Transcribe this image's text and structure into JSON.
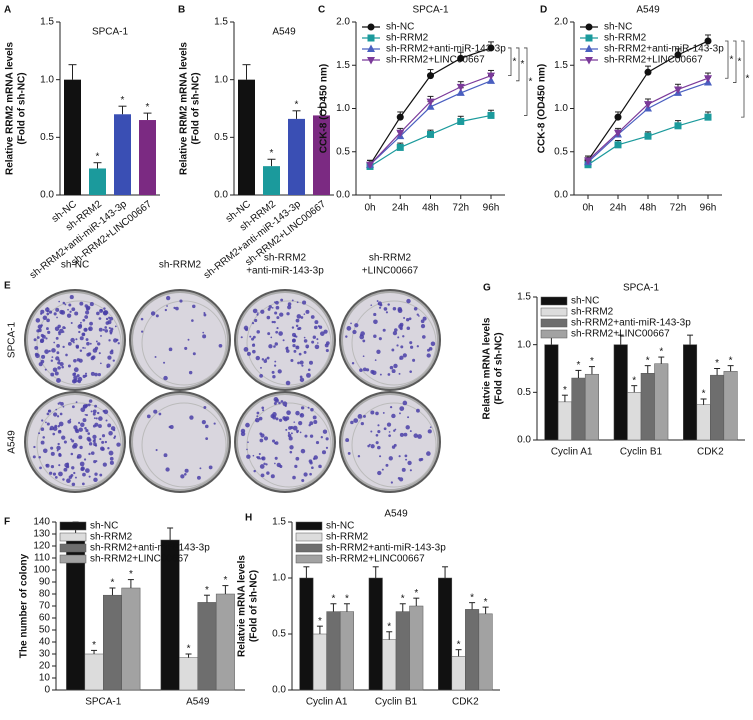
{
  "chart_data": [
    {
      "type": "bar",
      "panel": "A",
      "title": "SPCA-1",
      "ylabel": [
        "Relative RRM2 mRNA levels",
        "(Fold of sh-NC)"
      ],
      "categories": [
        "sh-NC",
        "sh-RRM2",
        "sh-RRM2+anti-miR-143-3p",
        "sh-RRM2+LINC00667"
      ],
      "values": [
        1.0,
        0.23,
        0.7,
        0.65
      ],
      "errors": [
        0.13,
        0.05,
        0.07,
        0.06
      ],
      "colors": [
        "#111111",
        "#1b9a9c",
        "#3a4fb4",
        "#7b2a82"
      ],
      "significance": [
        null,
        "*",
        "*",
        "*"
      ],
      "ylim": [
        0,
        1.5
      ],
      "yticks": [
        {
          "value": 0,
          "label": "0.0"
        },
        0.5,
        {
          "value": 1,
          "label": "1.0"
        },
        1.5
      ]
    },
    {
      "type": "bar",
      "panel": "B",
      "title": "A549",
      "ylabel": [
        "Relative RRM2 mRNA levels",
        "(Fold of sh-NC)"
      ],
      "categories": [
        "sh-NC",
        "sh-RRM2",
        "sh-RRM2+anti-miR-143-3p",
        "sh-RRM2+LINC00667"
      ],
      "values": [
        1.0,
        0.25,
        0.66,
        0.69
      ],
      "errors": [
        0.13,
        0.06,
        0.07,
        0.07
      ],
      "colors": [
        "#111111",
        "#1b9a9c",
        "#3a4fb4",
        "#7b2a82"
      ],
      "significance": [
        null,
        "*",
        "*",
        "*"
      ],
      "ylim": [
        0,
        1.5
      ],
      "yticks": [
        {
          "value": 0,
          "label": "0.0"
        },
        0.5,
        {
          "value": 1,
          "label": "1.0"
        },
        1.5
      ]
    },
    {
      "type": "line",
      "panel": "C",
      "title": "SPCA-1",
      "ylabel": [
        "CCK-8 (OD450 nm)"
      ],
      "categories": [
        "0h",
        "24h",
        "48h",
        "72h",
        "96h"
      ],
      "series": [
        {
          "name": "sh-NC",
          "color": "#111111",
          "marker": "circle",
          "values": [
            0.35,
            0.9,
            1.38,
            1.58,
            1.7
          ],
          "errors": [
            0.05,
            0.06,
            0.07,
            0.07,
            0.07
          ]
        },
        {
          "name": "sh-RRM2",
          "color": "#1b9a9c",
          "marker": "square",
          "values": [
            0.33,
            0.55,
            0.7,
            0.85,
            0.92
          ],
          "errors": [
            0.04,
            0.05,
            0.05,
            0.06,
            0.06
          ]
        },
        {
          "name": "sh-RRM2+anti-miR-143-3p",
          "color": "#4a5fc0",
          "marker": "triangle",
          "values": [
            0.35,
            0.68,
            1.02,
            1.18,
            1.32
          ],
          "errors": [
            0.05,
            0.05,
            0.06,
            0.06,
            0.06
          ]
        },
        {
          "name": "sh-RRM2+LINC00667",
          "color": "#7b3a9a",
          "marker": "triangle-down",
          "values": [
            0.35,
            0.72,
            1.08,
            1.25,
            1.38
          ],
          "errors": [
            0.05,
            0.05,
            0.06,
            0.06,
            0.06
          ]
        }
      ],
      "significance": [
        "*",
        "*",
        "*"
      ],
      "ylim": [
        0,
        2
      ],
      "yticks": [
        {
          "value": 0,
          "label": "0.0"
        },
        0.5,
        {
          "value": 1,
          "label": "1.0"
        },
        1.5,
        {
          "value": 2,
          "label": "2.0"
        }
      ]
    },
    {
      "type": "line",
      "panel": "D",
      "title": "A549",
      "ylabel": [
        "CCK-8 (OD450 nm)"
      ],
      "categories": [
        "0h",
        "24h",
        "48h",
        "72h",
        "96h"
      ],
      "series": [
        {
          "name": "sh-NC",
          "color": "#111111",
          "marker": "circle",
          "values": [
            0.4,
            0.9,
            1.42,
            1.62,
            1.78
          ],
          "errors": [
            0.05,
            0.06,
            0.07,
            0.07,
            0.07
          ]
        },
        {
          "name": "sh-RRM2",
          "color": "#1b9a9c",
          "marker": "square",
          "values": [
            0.35,
            0.58,
            0.68,
            0.8,
            0.9
          ],
          "errors": [
            0.04,
            0.05,
            0.05,
            0.06,
            0.06
          ]
        },
        {
          "name": "sh-RRM2+anti-miR-143-3p",
          "color": "#4a5fc0",
          "marker": "triangle",
          "values": [
            0.38,
            0.7,
            1.0,
            1.18,
            1.3
          ],
          "errors": [
            0.05,
            0.05,
            0.06,
            0.06,
            0.06
          ]
        },
        {
          "name": "sh-RRM2+LINC00667",
          "color": "#7b3a9a",
          "marker": "triangle-down",
          "values": [
            0.4,
            0.72,
            1.05,
            1.22,
            1.35
          ],
          "errors": [
            0.05,
            0.05,
            0.06,
            0.06,
            0.06
          ]
        }
      ],
      "significance": [
        "*",
        "*",
        "*"
      ],
      "ylim": [
        0,
        2
      ],
      "yticks": [
        {
          "value": 0,
          "label": "0.0"
        },
        0.5,
        {
          "value": 1,
          "label": "1.0"
        },
        1.5,
        {
          "value": 2,
          "label": "2.0"
        }
      ]
    },
    {
      "type": "bar",
      "panel": "G",
      "title": "SPCA-1",
      "ylabel": [
        "Relatvie mRNA levels",
        "(Fold of sh-NC)"
      ],
      "categories": [
        "Cyclin A1",
        "Cyclin B1",
        "CDK2"
      ],
      "series": [
        {
          "name": "sh-NC",
          "color": "#111111",
          "values": [
            1.0,
            1.0,
            1.0
          ],
          "errors": [
            0.1,
            0.1,
            0.1
          ],
          "significance": [
            null,
            null,
            null
          ]
        },
        {
          "name": "sh-RRM2",
          "color": "#dcdcdc",
          "values": [
            0.4,
            0.5,
            0.37
          ],
          "errors": [
            0.07,
            0.07,
            0.06
          ],
          "significance": [
            "*",
            "*",
            "*"
          ]
        },
        {
          "name": "sh-RRM2+anti-miR-143-3p",
          "color": "#6e6e6e",
          "values": [
            0.65,
            0.7,
            0.68
          ],
          "errors": [
            0.08,
            0.08,
            0.07
          ],
          "significance": [
            "*",
            "*",
            "*"
          ]
        },
        {
          "name": "sh-RRM2+LINC00667",
          "color": "#a2a2a2",
          "values": [
            0.69,
            0.8,
            0.72
          ],
          "errors": [
            0.08,
            0.07,
            0.06
          ],
          "significance": [
            "*",
            "*",
            "*"
          ]
        }
      ],
      "ylim": [
        0,
        1.5
      ],
      "yticks": [
        {
          "value": 0,
          "label": "0.0"
        },
        0.5,
        {
          "value": 1,
          "label": "1.0"
        },
        1.5
      ]
    },
    {
      "type": "bar",
      "panel": "F",
      "ylabel": [
        "The number of colony"
      ],
      "categories": [
        "SPCA-1",
        "A549"
      ],
      "series": [
        {
          "name": "sh-NC",
          "color": "#111111",
          "values": [
            130,
            125
          ],
          "errors": [
            10,
            10
          ],
          "significance": [
            null,
            null
          ]
        },
        {
          "name": "sh-RRM2",
          "color": "#dcdcdc",
          "values": [
            30,
            27
          ],
          "errors": [
            3,
            3
          ],
          "significance": [
            "*",
            "*"
          ]
        },
        {
          "name": "sh-RRM2+anti-miR-143-3p",
          "color": "#6e6e6e",
          "values": [
            79,
            73
          ],
          "errors": [
            6,
            6
          ],
          "significance": [
            "*",
            "*"
          ]
        },
        {
          "name": "sh-RRM2+LINC00667",
          "color": "#a2a2a2",
          "values": [
            85,
            80
          ],
          "errors": [
            7,
            7
          ],
          "significance": [
            "*",
            "*"
          ]
        }
      ],
      "ylim": [
        0,
        140
      ],
      "yticks": [
        0,
        10,
        20,
        30,
        40,
        50,
        60,
        70,
        80,
        90,
        100,
        110,
        120,
        130,
        140
      ]
    },
    {
      "type": "bar",
      "panel": "H",
      "title": "A549",
      "ylabel": [
        "Relatvie mRNA levels",
        "(Fold of sh-NC)"
      ],
      "categories": [
        "Cyclin A1",
        "Cyclin B1",
        "CDK2"
      ],
      "series": [
        {
          "name": "sh-NC",
          "color": "#111111",
          "values": [
            1.0,
            1.0,
            1.0
          ],
          "errors": [
            0.1,
            0.1,
            0.1
          ],
          "significance": [
            null,
            null,
            null
          ]
        },
        {
          "name": "sh-RRM2",
          "color": "#dcdcdc",
          "values": [
            0.5,
            0.45,
            0.3
          ],
          "errors": [
            0.07,
            0.07,
            0.06
          ],
          "significance": [
            "*",
            "*",
            "*"
          ]
        },
        {
          "name": "sh-RRM2+anti-miR-143-3p",
          "color": "#6e6e6e",
          "values": [
            0.7,
            0.7,
            0.72
          ],
          "errors": [
            0.07,
            0.07,
            0.06
          ],
          "significance": [
            "*",
            "*",
            "*"
          ]
        },
        {
          "name": "sh-RRM2+LINC00667",
          "color": "#a2a2a2",
          "values": [
            0.7,
            0.75,
            0.68
          ],
          "errors": [
            0.07,
            0.07,
            0.06
          ],
          "significance": [
            "*",
            "*",
            "*"
          ]
        }
      ],
      "ylim": [
        0,
        1.5
      ],
      "yticks": [
        {
          "value": 0,
          "label": "0.0"
        },
        0.5,
        {
          "value": 1,
          "label": "1.0"
        },
        1.5
      ]
    }
  ],
  "colony_assay": {
    "panel": "E",
    "columns": [
      [
        "sh-NC"
      ],
      [
        "sh-RRM2"
      ],
      [
        "sh-RRM2",
        "+anti-miR-143-3p"
      ],
      [
        "sh-RRM2",
        "+LINC00667"
      ]
    ],
    "rows": [
      "SPCA-1",
      "A549"
    ]
  }
}
